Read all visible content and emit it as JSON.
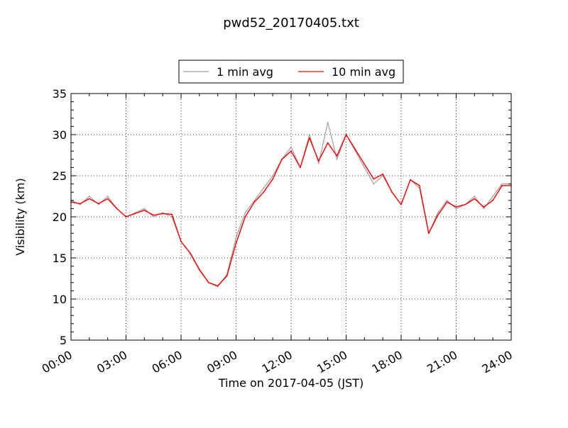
{
  "chart_data": {
    "type": "line",
    "title": "pwd52_20170405.txt",
    "xlabel": "Time on 2017-04-05 (JST)",
    "ylabel": "Visibility (km)",
    "xlim": [
      "00:00",
      "24:00"
    ],
    "ylim": [
      5,
      35
    ],
    "x_ticks": [
      "00:00",
      "03:00",
      "06:00",
      "09:00",
      "12:00",
      "15:00",
      "18:00",
      "21:00",
      "24:00"
    ],
    "y_ticks": [
      5,
      10,
      15,
      20,
      25,
      30,
      35
    ],
    "grid": true,
    "legend_position": "top-center",
    "series": [
      {
        "name": "1 min avg",
        "color": "#a0a0a0",
        "x": [
          "00:00",
          "00:30",
          "01:00",
          "01:30",
          "02:00",
          "02:30",
          "03:00",
          "03:30",
          "04:00",
          "04:30",
          "05:00",
          "05:30",
          "06:00",
          "06:30",
          "07:00",
          "07:30",
          "08:00",
          "08:30",
          "09:00",
          "09:30",
          "10:00",
          "10:30",
          "11:00",
          "11:30",
          "12:00",
          "12:30",
          "13:00",
          "13:30",
          "14:00",
          "14:30",
          "15:00",
          "15:30",
          "16:00",
          "16:30",
          "17:00",
          "17:30",
          "18:00",
          "18:30",
          "19:00",
          "19:30",
          "20:00",
          "20:30",
          "21:00",
          "21:30",
          "22:00",
          "22:30",
          "23:00",
          "23:30",
          "24:00"
        ],
        "values": [
          22.0,
          21.5,
          22.5,
          21.5,
          22.5,
          21.0,
          20.0,
          20.5,
          21.0,
          20.0,
          20.5,
          20.0,
          17.0,
          15.5,
          13.5,
          12.0,
          11.5,
          13.0,
          17.5,
          20.5,
          22.0,
          23.5,
          25.0,
          27.0,
          28.5,
          26.0,
          30.0,
          26.5,
          31.5,
          27.0,
          30.0,
          28.0,
          26.0,
          24.0,
          25.0,
          23.0,
          21.5,
          24.5,
          23.5,
          18.0,
          20.5,
          22.0,
          21.0,
          21.5,
          22.5,
          21.0,
          22.5,
          24.0,
          24.0
        ]
      },
      {
        "name": "10 min avg",
        "color": "#ff0000",
        "x": [
          "00:00",
          "00:30",
          "01:00",
          "01:30",
          "02:00",
          "02:30",
          "03:00",
          "03:30",
          "04:00",
          "04:30",
          "05:00",
          "05:30",
          "06:00",
          "06:30",
          "07:00",
          "07:30",
          "08:00",
          "08:30",
          "09:00",
          "09:30",
          "10:00",
          "10:30",
          "11:00",
          "11:30",
          "12:00",
          "12:30",
          "13:00",
          "13:30",
          "14:00",
          "14:30",
          "15:00",
          "15:30",
          "16:00",
          "16:30",
          "17:00",
          "17:30",
          "18:00",
          "18:30",
          "19:00",
          "19:30",
          "20:00",
          "20:30",
          "21:00",
          "21:30",
          "22:00",
          "22:30",
          "23:00",
          "23:30",
          "24:00"
        ],
        "values": [
          21.8,
          21.6,
          22.2,
          21.6,
          22.2,
          21.0,
          20.0,
          20.4,
          20.8,
          20.2,
          20.4,
          20.3,
          17.0,
          15.6,
          13.6,
          12.0,
          11.6,
          12.8,
          16.8,
          20.0,
          21.8,
          23.0,
          24.6,
          27.0,
          28.0,
          26.0,
          29.6,
          26.8,
          29.0,
          27.4,
          30.0,
          28.2,
          26.4,
          24.6,
          25.2,
          23.0,
          21.5,
          24.5,
          23.8,
          18.0,
          20.2,
          21.8,
          21.2,
          21.5,
          22.2,
          21.2,
          22.0,
          23.8,
          23.8
        ]
      }
    ]
  }
}
